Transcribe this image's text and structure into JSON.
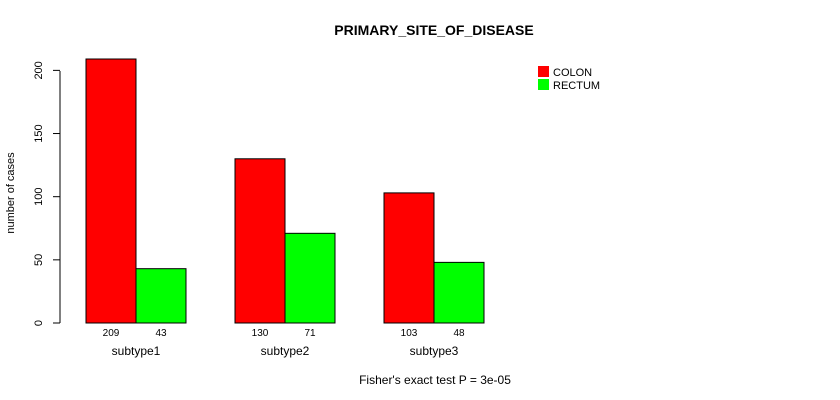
{
  "chart_data": {
    "type": "bar",
    "title": "PRIMARY_SITE_OF_DISEASE",
    "ylabel": "number of cases",
    "xlabel": "",
    "footnote": "Fisher's exact test P = 3e-05",
    "categories": [
      "subtype1",
      "subtype2",
      "subtype3"
    ],
    "series": [
      {
        "name": "COLON",
        "color": "#ff0000",
        "values": [
          209,
          130,
          103
        ]
      },
      {
        "name": "RECTUM",
        "color": "#00ff00",
        "values": [
          43,
          71,
          48
        ]
      }
    ],
    "ylim": [
      0,
      209
    ],
    "yticks": [
      0,
      50,
      100,
      150,
      200
    ],
    "grid": false,
    "legend_position": "top-right"
  }
}
